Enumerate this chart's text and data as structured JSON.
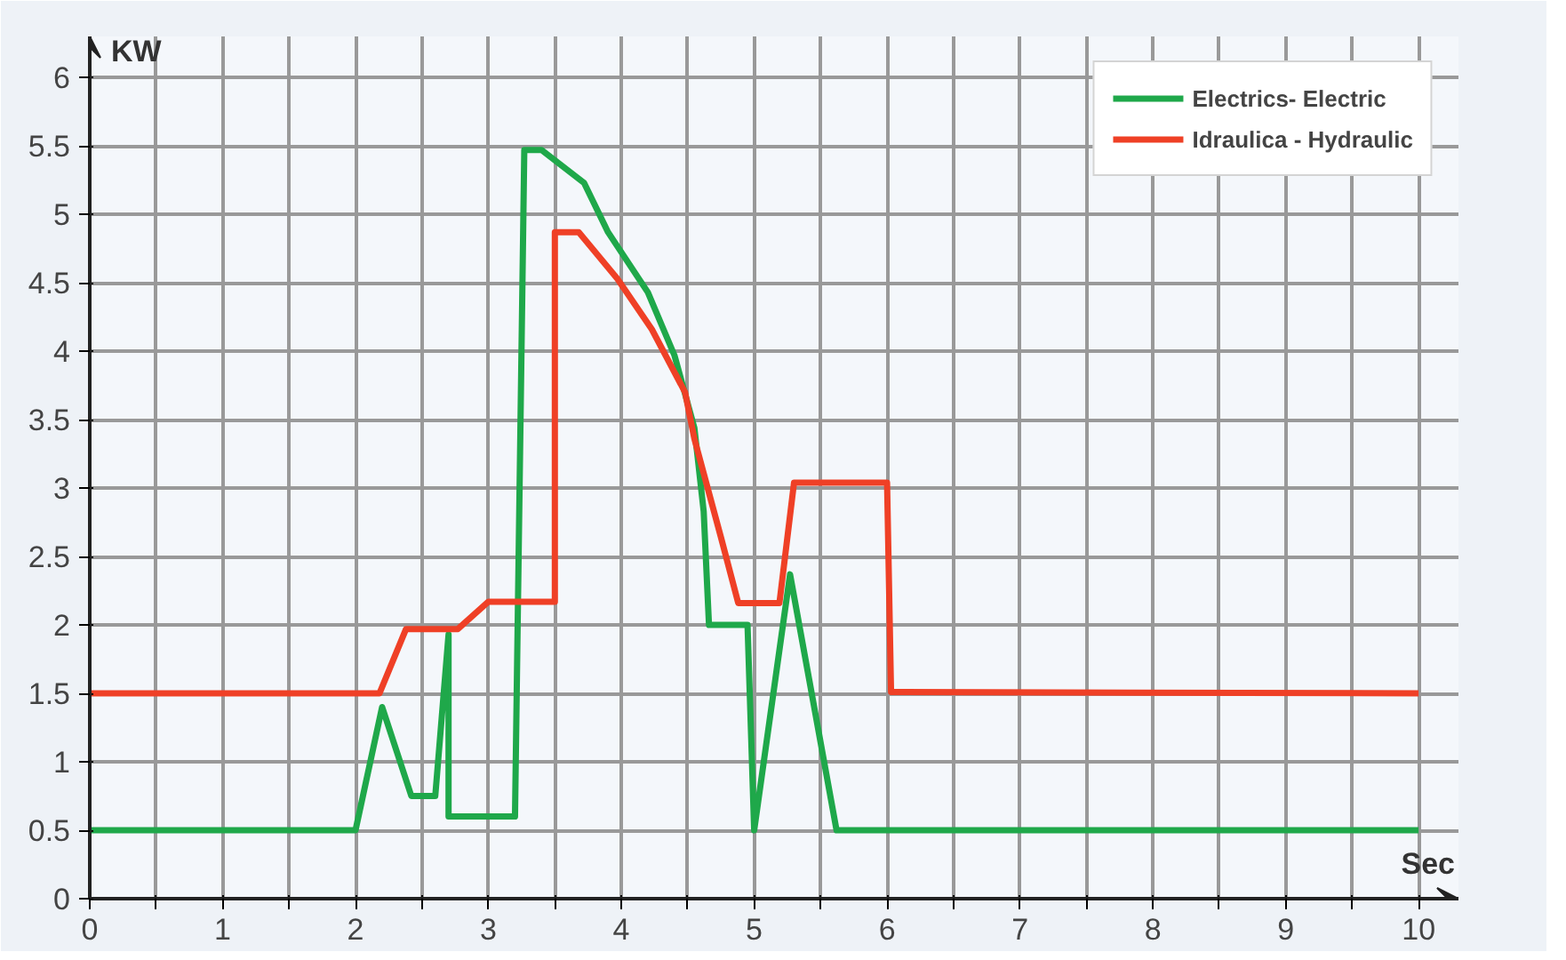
{
  "chart_data": {
    "type": "line",
    "xlabel": "Sec",
    "ylabel": "KW",
    "xlim": [
      0,
      10.3
    ],
    "ylim": [
      0,
      6.3
    ],
    "xticks": [
      0,
      {
        "value": 0.5,
        "label": null
      },
      1,
      {
        "value": 1.5,
        "label": null
      },
      2,
      {
        "value": 2.5,
        "label": null
      },
      3,
      {
        "value": 3.5,
        "label": null
      },
      4,
      {
        "value": 4.5,
        "label": null
      },
      5,
      {
        "value": 5.5,
        "label": null
      },
      6,
      {
        "value": 6.5,
        "label": null
      },
      7,
      {
        "value": 7.5,
        "label": null
      },
      8,
      {
        "value": 8.5,
        "label": null
      },
      9,
      {
        "value": 9.5,
        "label": null
      },
      10
    ],
    "yticks": [
      0,
      0.5,
      1,
      1.5,
      2,
      2.5,
      3,
      3.5,
      4,
      4.5,
      5,
      5.5,
      6
    ],
    "grid": true,
    "legend": "top right",
    "marker": "none",
    "line_style": "solid",
    "series": [
      {
        "name": "Electrics- Electric",
        "color": "#1fa84a",
        "x": [
          0,
          2.0,
          2.2,
          2.42,
          2.6,
          2.7,
          2.7,
          3.2,
          3.27,
          3.4,
          3.72,
          3.9,
          4.2,
          4.4,
          4.55,
          4.62,
          4.66,
          4.95,
          5.0,
          5.27,
          5.62,
          10
        ],
        "values": [
          0.5,
          0.5,
          1.4,
          0.75,
          0.75,
          1.93,
          0.6,
          0.6,
          5.47,
          5.47,
          5.23,
          4.87,
          4.43,
          3.97,
          3.44,
          2.83,
          2.0,
          2.0,
          0.5,
          2.37,
          0.5,
          0.5
        ]
      },
      {
        "name": "Idraulica - Hydraulic",
        "color": "#ef4026",
        "x": [
          0,
          2.18,
          2.38,
          2.77,
          3.0,
          3.5,
          3.5,
          3.68,
          3.97,
          4.23,
          4.48,
          4.55,
          4.75,
          4.88,
          5.19,
          5.3,
          6.0,
          6.03,
          10
        ],
        "values": [
          1.5,
          1.5,
          1.97,
          1.97,
          2.17,
          2.17,
          4.87,
          4.87,
          4.53,
          4.16,
          3.7,
          3.36,
          2.64,
          2.16,
          2.16,
          3.04,
          3.04,
          1.51,
          1.5
        ]
      }
    ]
  }
}
